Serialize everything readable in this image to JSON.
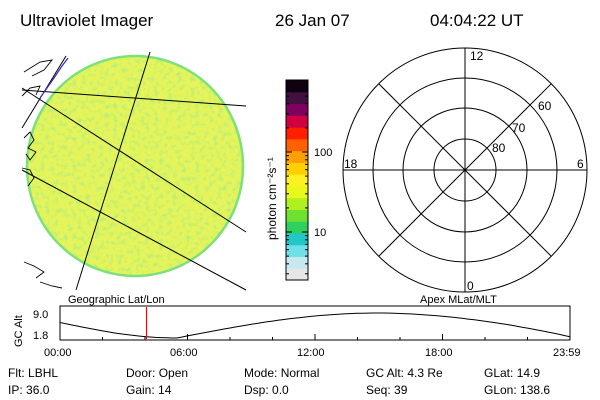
{
  "header": {
    "title": "Ultraviolet Imager",
    "date": "26 Jan 07",
    "time": "04:04:22 UT"
  },
  "colorbar": {
    "unit_label": "photon cm⁻²s⁻¹",
    "tick_labels": [
      "100",
      "10"
    ],
    "tick_values": [
      100,
      10
    ],
    "range_log": [
      0.4,
      2.9
    ],
    "colors": [
      "#e6e6e6",
      "#c8e8f0",
      "#6fdfe8",
      "#22c8c8",
      "#30d060",
      "#70e030",
      "#b0f020",
      "#e8f818",
      "#fff020",
      "#ffd000",
      "#ffa000",
      "#ff6000",
      "#ff2000",
      "#d00040",
      "#800060",
      "#401040",
      "#100010"
    ]
  },
  "left_panel": {
    "caption": "Geographic Lat/Lon",
    "globe_fill": "#e4f45a",
    "edge_color": "#7ee07a"
  },
  "right_panel": {
    "caption": "Apex MLat/MLT",
    "mlt_labels": [
      "12",
      "6",
      "0",
      "18"
    ],
    "mlat_labels": [
      "60",
      "70",
      "80"
    ]
  },
  "altitude_plot": {
    "ylabel": "GC Alt",
    "yticks": [
      "9.0",
      "1.8"
    ],
    "xticks": [
      "00:00",
      "06:00",
      "12:00",
      "18:00",
      "23:59"
    ],
    "current_time_hours": 4.07,
    "marker_color": "#ff0000"
  },
  "status": {
    "row1": [
      {
        "label": "Flt:",
        "value": "LBHL"
      },
      {
        "label": "Door:",
        "value": "Open"
      },
      {
        "label": "Mode:",
        "value": "Normal"
      },
      {
        "label": "GC Alt:",
        "value": "4.3 Re"
      },
      {
        "label": "GLat:",
        "value": "14.9"
      }
    ],
    "row2": [
      {
        "label": "IP:",
        "value": "36.0"
      },
      {
        "label": "Gain:",
        "value": "14"
      },
      {
        "label": "Dsp:",
        "value": "0.0"
      },
      {
        "label": "Seq:",
        "value": "39"
      },
      {
        "label": "GLon:",
        "value": "138.6"
      }
    ]
  }
}
